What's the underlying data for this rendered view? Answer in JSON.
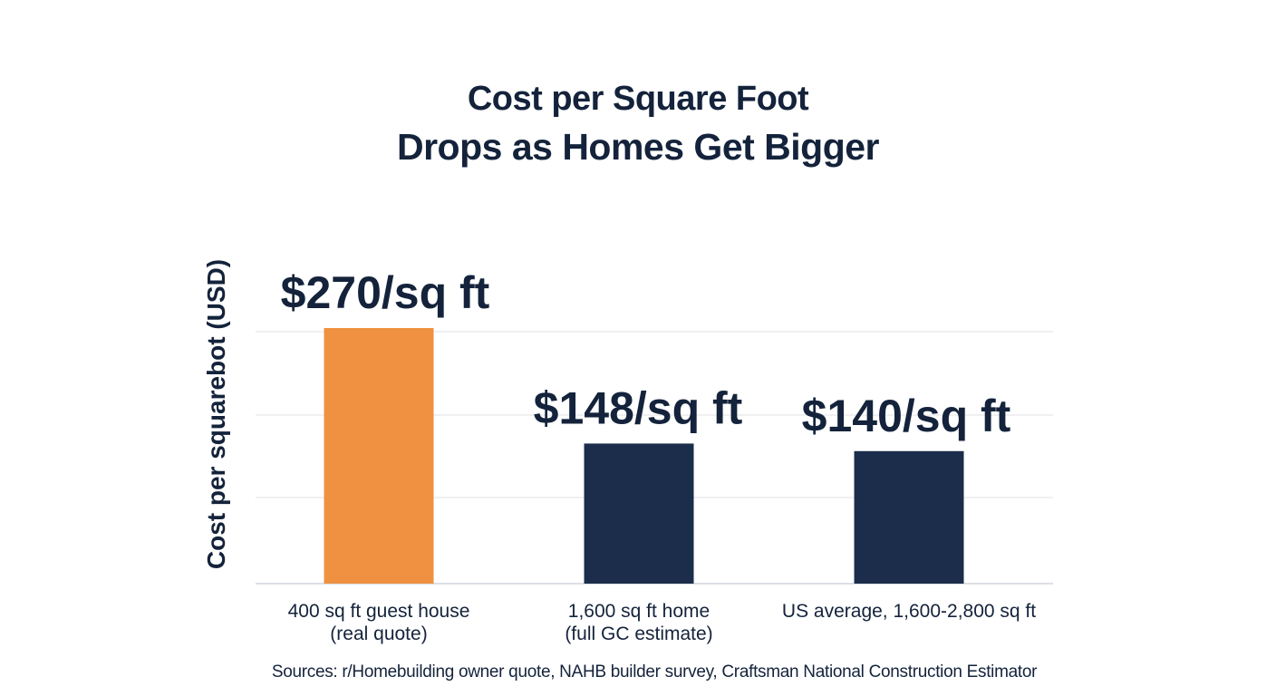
{
  "title_lines": [
    "Cost per Square Foot",
    "Drops as Homes Get Bigger"
  ],
  "sources": "Sources: r/Homebuilding owner quote, NAHB builder survey, Craftsman National Construction Estimator",
  "chart_data": {
    "type": "bar",
    "title": "Cost per Square Foot Drops as Homes Get Bigger",
    "ylabel": "Cost per squarebot (USD)",
    "xlabel": "",
    "categories": [
      [
        "400 sq ft guest house",
        "(real quote)"
      ],
      [
        "1,600 sq ft home",
        "(full GC estimate)"
      ],
      [
        "US average, 1,600-2,800 sq ft"
      ]
    ],
    "values": [
      270,
      148,
      140
    ],
    "value_labels": [
      "$270/sq ft",
      "$148/sq ft",
      "$140/sq ft"
    ],
    "colors": [
      "#ef9140",
      "#1b2d4b",
      "#1b2d4b"
    ],
    "grid": true,
    "gridline_count": 4,
    "legend": "none"
  }
}
